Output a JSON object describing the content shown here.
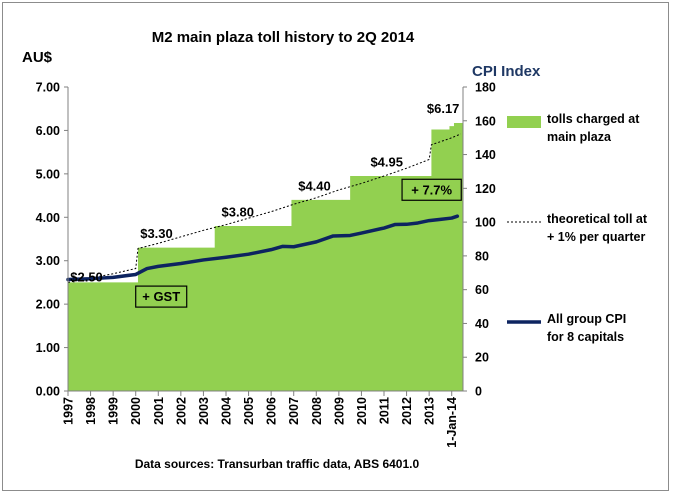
{
  "chart_data": {
    "type": "area",
    "title": "M2 main plaza toll history to 2Q 2014",
    "ylabel_left": "AU$",
    "ylabel_right": "CPI Index",
    "source": "Data sources: Transurban traffic data, ABS 6401.0",
    "ylim_left": [
      0,
      7
    ],
    "ylim_right": [
      0,
      180
    ],
    "yticks_left": [
      "0.00",
      "1.00",
      "2.00",
      "3.00",
      "4.00",
      "5.00",
      "6.00",
      "7.00"
    ],
    "yticks_right": [
      "0",
      "20",
      "40",
      "60",
      "80",
      "100",
      "120",
      "140",
      "160",
      "180"
    ],
    "xlim": [
      1997,
      2014.5
    ],
    "xticks": [
      {
        "x": 1997,
        "label": "1997"
      },
      {
        "x": 1998,
        "label": "1998"
      },
      {
        "x": 1999,
        "label": "1999"
      },
      {
        "x": 2000,
        "label": "2000"
      },
      {
        "x": 2001,
        "label": "2001"
      },
      {
        "x": 2002,
        "label": "2002"
      },
      {
        "x": 2003,
        "label": "2003"
      },
      {
        "x": 2004,
        "label": "2004"
      },
      {
        "x": 2005,
        "label": "2005"
      },
      {
        "x": 2006,
        "label": "2006"
      },
      {
        "x": 2007,
        "label": "2007"
      },
      {
        "x": 2008,
        "label": "2008"
      },
      {
        "x": 2009,
        "label": "2009"
      },
      {
        "x": 2010,
        "label": "2010"
      },
      {
        "x": 2011,
        "label": "2011"
      },
      {
        "x": 2012,
        "label": "2012"
      },
      {
        "x": 2013,
        "label": "2013"
      },
      {
        "x": 2014,
        "label": "1-Jan-14"
      }
    ],
    "colors": {
      "toll": "#92d050",
      "cpi": "#0d2460",
      "theoretical": "#000000",
      "annotation_border": "#000000",
      "right_axis": "#1f3864"
    },
    "series": [
      {
        "name": "tolls charged at main plaza",
        "kind": "step-area",
        "axis": "left",
        "points": [
          {
            "x": 1997,
            "y": 2.5
          },
          {
            "x": 2000.1,
            "y": 3.3
          },
          {
            "x": 2003.5,
            "y": 3.8
          },
          {
            "x": 2006.9,
            "y": 4.4
          },
          {
            "x": 2009.5,
            "y": 4.95
          },
          {
            "x": 2013.1,
            "y": 6.02
          },
          {
            "x": 2013.9,
            "y": 6.1
          },
          {
            "x": 2014.1,
            "y": 6.17
          }
        ],
        "end_x": 2014.5
      },
      {
        "name": "theoretical toll at + 1% per quarter",
        "kind": "dotted-line",
        "axis": "left",
        "points": [
          {
            "x": 1997,
            "y": 2.5
          },
          {
            "x": 1998,
            "y": 2.6
          },
          {
            "x": 1999,
            "y": 2.7
          },
          {
            "x": 2000,
            "y": 2.82
          },
          {
            "x": 2000.1,
            "y": 3.28
          },
          {
            "x": 2001,
            "y": 3.4
          },
          {
            "x": 2002,
            "y": 3.55
          },
          {
            "x": 2003,
            "y": 3.7
          },
          {
            "x": 2004,
            "y": 3.83
          },
          {
            "x": 2005,
            "y": 3.98
          },
          {
            "x": 2006,
            "y": 4.13
          },
          {
            "x": 2007,
            "y": 4.3
          },
          {
            "x": 2008,
            "y": 4.45
          },
          {
            "x": 2009,
            "y": 4.63
          },
          {
            "x": 2010,
            "y": 4.78
          },
          {
            "x": 2011,
            "y": 4.95
          },
          {
            "x": 2012,
            "y": 5.13
          },
          {
            "x": 2013,
            "y": 5.33
          },
          {
            "x": 2013.1,
            "y": 5.67
          },
          {
            "x": 2014,
            "y": 5.83
          },
          {
            "x": 2014.4,
            "y": 5.92
          }
        ]
      },
      {
        "name": "All group CPI for 8 capitals",
        "kind": "line",
        "axis": "right",
        "points": [
          {
            "x": 1997,
            "y": 66.0
          },
          {
            "x": 1998,
            "y": 66.5
          },
          {
            "x": 1999,
            "y": 67.3
          },
          {
            "x": 2000,
            "y": 69.0
          },
          {
            "x": 2000.5,
            "y": 72.5
          },
          {
            "x": 2001,
            "y": 73.8
          },
          {
            "x": 2002,
            "y": 75.5
          },
          {
            "x": 2003,
            "y": 77.6
          },
          {
            "x": 2004,
            "y": 79.2
          },
          {
            "x": 2005,
            "y": 81.0
          },
          {
            "x": 2006,
            "y": 83.7
          },
          {
            "x": 2006.5,
            "y": 85.6
          },
          {
            "x": 2007,
            "y": 85.4
          },
          {
            "x": 2008,
            "y": 88.3
          },
          {
            "x": 2008.75,
            "y": 91.8
          },
          {
            "x": 2009.5,
            "y": 92.1
          },
          {
            "x": 2010,
            "y": 93.5
          },
          {
            "x": 2011,
            "y": 96.5
          },
          {
            "x": 2011.5,
            "y": 98.6
          },
          {
            "x": 2012,
            "y": 98.7
          },
          {
            "x": 2012.5,
            "y": 99.5
          },
          {
            "x": 2013,
            "y": 100.9
          },
          {
            "x": 2013.5,
            "y": 101.6
          },
          {
            "x": 2014,
            "y": 102.4
          },
          {
            "x": 2014.25,
            "y": 103.5
          }
        ]
      }
    ],
    "annotations": [
      {
        "text": "$2.50",
        "x": 1997.1,
        "y": 2.52,
        "boxed": false
      },
      {
        "text": "$3.30",
        "x": 2000.2,
        "y": 3.52,
        "boxed": false
      },
      {
        "text": "$3.80",
        "x": 2003.8,
        "y": 4.02,
        "boxed": false
      },
      {
        "text": "$4.40",
        "x": 2007.2,
        "y": 4.62,
        "boxed": false
      },
      {
        "text": "$4.95",
        "x": 2010.4,
        "y": 5.17,
        "boxed": false
      },
      {
        "text": "$6.17",
        "x": 2012.9,
        "y": 6.4,
        "boxed": false
      },
      {
        "text": "+ GST",
        "x": 2000.0,
        "y": 2.07,
        "boxed": true
      },
      {
        "text": "+ 7.7%",
        "x": 2011.8,
        "y": 4.53,
        "boxed": true
      }
    ],
    "legend": [
      {
        "label_lines": [
          "tolls charged at",
          "main plaza"
        ],
        "swatch": "rect"
      },
      {
        "label_lines": [
          "theoretical toll at",
          "+ 1% per quarter"
        ],
        "swatch": "dotted"
      },
      {
        "label_lines": [
          "All group CPI",
          "for 8 capitals"
        ],
        "swatch": "line"
      }
    ]
  }
}
